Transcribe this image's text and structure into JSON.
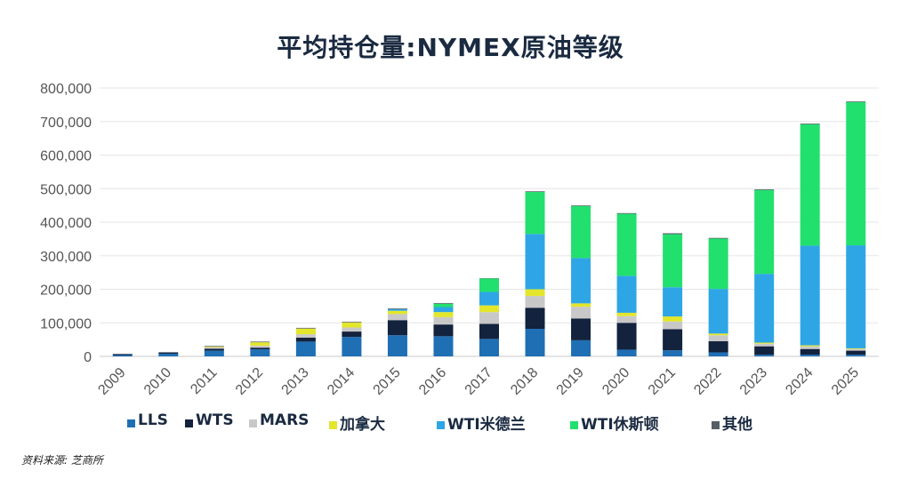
{
  "chart_data": {
    "type": "stacked-bar",
    "title": "平均持仓量:NYMEX原油等级",
    "categories": [
      "2009",
      "2010",
      "2011",
      "2012",
      "2013",
      "2014",
      "2015",
      "2016",
      "2017",
      "2018",
      "2019",
      "2020",
      "2021",
      "2022",
      "2023",
      "2024",
      "2025"
    ],
    "ylim": [
      0,
      800000
    ],
    "yticks": [
      "0",
      "100,000",
      "200,000",
      "300,000",
      "400,000",
      "500,000",
      "600,000",
      "700,000",
      "800,000"
    ],
    "grid": true,
    "legend_position": "bottom",
    "series": [
      {
        "name": "LLS",
        "color": "#1f6fb5",
        "values": [
          4000,
          8000,
          17000,
          21000,
          44000,
          58000,
          63000,
          60000,
          52000,
          82000,
          48000,
          20000,
          18000,
          12000,
          5000,
          5000,
          5000
        ]
      },
      {
        "name": "WTS",
        "color": "#13223d",
        "values": [
          3000,
          4000,
          6000,
          5000,
          12000,
          16000,
          45000,
          35000,
          45000,
          63000,
          65000,
          80000,
          63000,
          33000,
          25000,
          17000,
          12000
        ]
      },
      {
        "name": "MARS",
        "color": "#c8c8c8",
        "values": [
          0,
          0,
          4000,
          6000,
          10000,
          12000,
          18000,
          22000,
          35000,
          35000,
          35000,
          20000,
          23000,
          18000,
          8000,
          8000,
          5000
        ]
      },
      {
        "name": "加拿大",
        "color": "#e3e62a",
        "values": [
          0,
          0,
          2000,
          10000,
          17000,
          15000,
          10000,
          15000,
          20000,
          20000,
          10000,
          10000,
          15000,
          5000,
          3000,
          3000,
          2000
        ]
      },
      {
        "name": "WTI米德兰",
        "color": "#2ea6e6",
        "values": [
          0,
          0,
          0,
          0,
          0,
          0,
          5000,
          15000,
          40000,
          165000,
          135000,
          110000,
          87000,
          133000,
          205000,
          297000,
          307000
        ]
      },
      {
        "name": "WTI休斯顿",
        "color": "#22e06e",
        "values": [
          0,
          0,
          0,
          0,
          0,
          0,
          0,
          10000,
          40000,
          125000,
          155000,
          185000,
          158000,
          150000,
          250000,
          362000,
          427000
        ]
      },
      {
        "name": "其他",
        "color": "#555f66",
        "values": [
          0,
          0,
          2000,
          2000,
          2000,
          2000,
          2000,
          2000,
          1000,
          2000,
          2000,
          2000,
          3000,
          2000,
          2000,
          2000,
          2000
        ]
      }
    ]
  },
  "source": "资料来源: 芝商所"
}
